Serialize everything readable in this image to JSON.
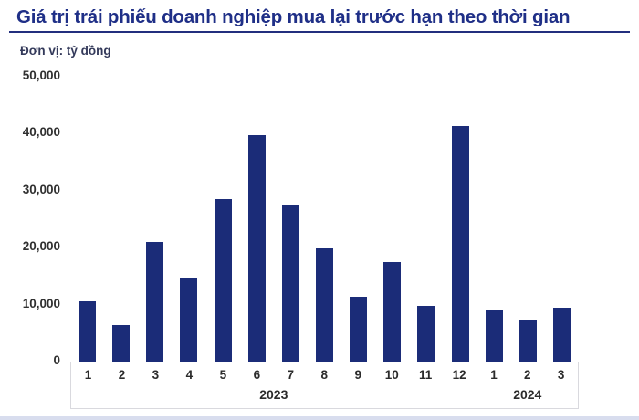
{
  "chart_data": {
    "type": "bar",
    "title": "Giá trị trái phiếu doanh nghiệp mua lại trước hạn theo thời gian",
    "unit_label": "Đơn vị: tỷ đồng",
    "ylabel": "tỷ đồng",
    "ylim": [
      0,
      50000
    ],
    "grid": false,
    "legend": false,
    "bar_color": "#1B2C78",
    "y_ticks": [
      {
        "value": 50000,
        "label": "50,000"
      },
      {
        "value": 40000,
        "label": "40,000"
      },
      {
        "value": 30000,
        "label": "30,000"
      },
      {
        "value": 20000,
        "label": "20,000"
      },
      {
        "value": 10000,
        "label": "10,000"
      },
      {
        "value": 0,
        "label": "0"
      }
    ],
    "groups": [
      {
        "year": "2023",
        "categories": [
          "1",
          "2",
          "3",
          "4",
          "5",
          "6",
          "7",
          "8",
          "9",
          "10",
          "11",
          "12"
        ],
        "values": [
          10500,
          6400,
          21000,
          14800,
          28600,
          39800,
          27500,
          19800,
          11400,
          17400,
          9700,
          41300
        ]
      },
      {
        "year": "2024",
        "categories": [
          "1",
          "2",
          "3"
        ],
        "values": [
          9000,
          7300,
          9400
        ]
      }
    ]
  },
  "colors": {
    "title": "#1F2F87",
    "title_underline": "#232F7E",
    "bar": "#1B2C78",
    "axis_text": "#2B2B2B",
    "box_border": "#D9D9DE",
    "bottom_strip": "#CBD1E8"
  }
}
